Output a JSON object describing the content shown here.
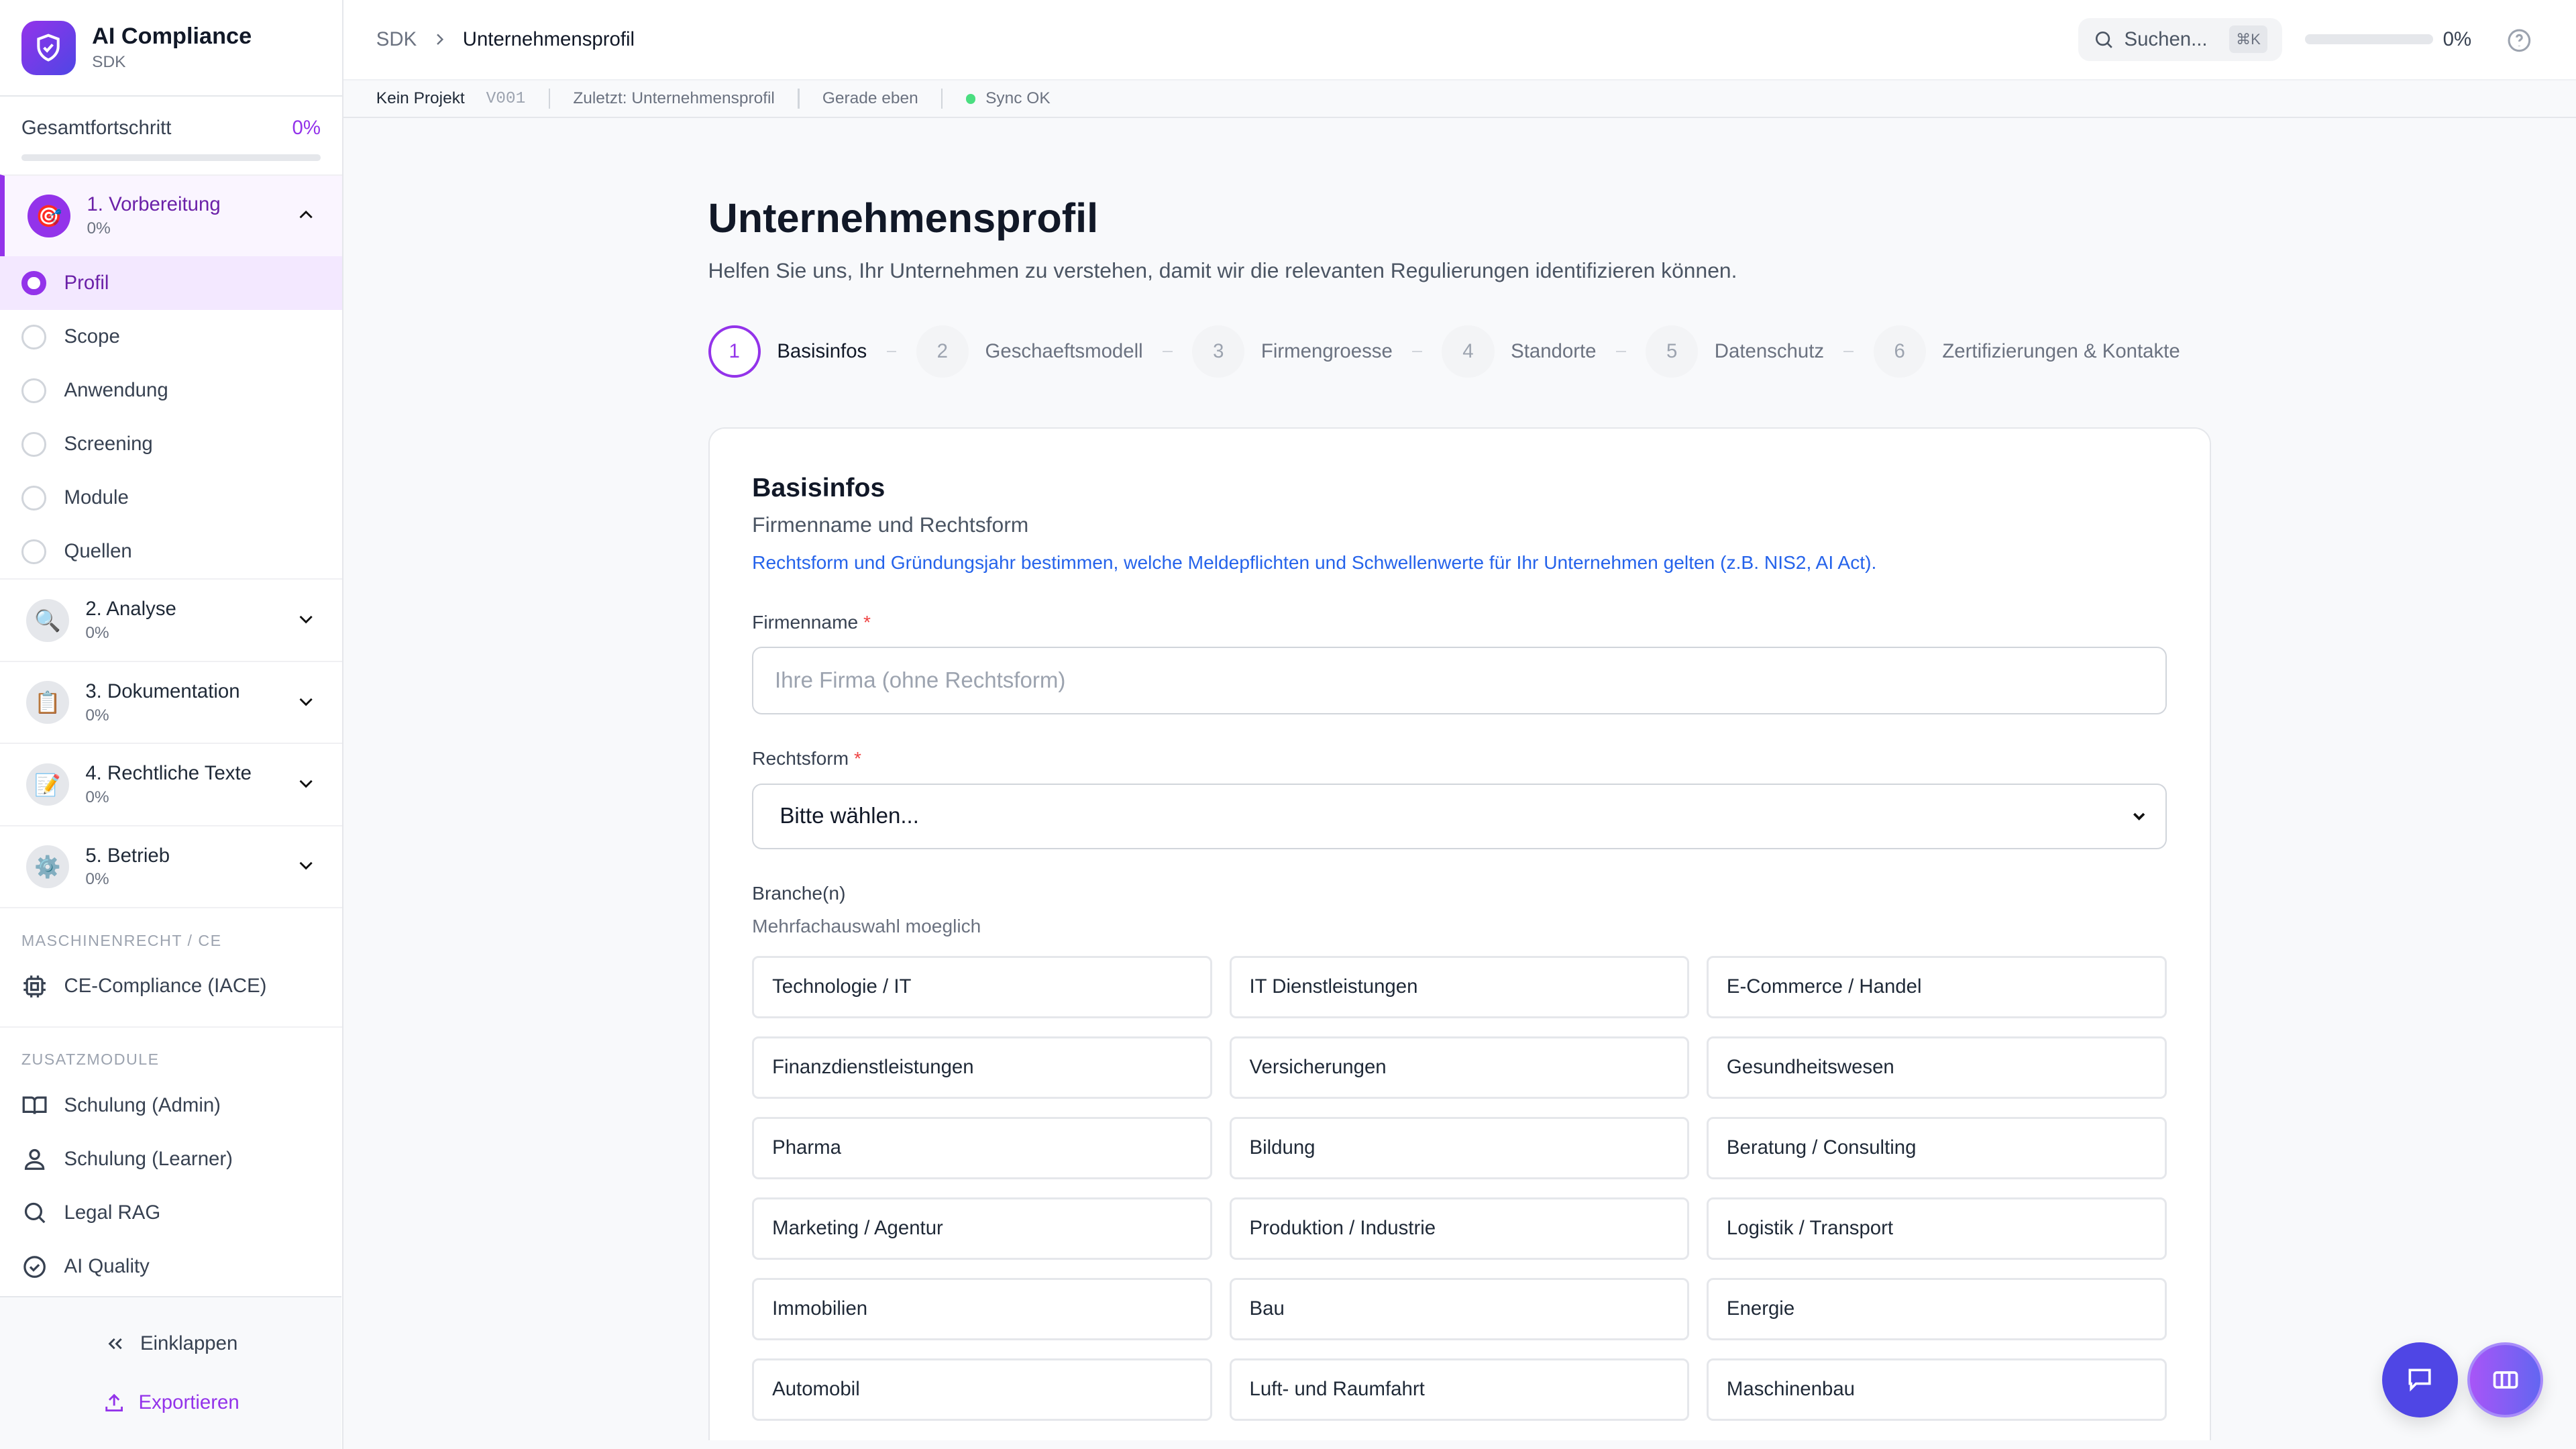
{
  "app": {
    "title": "AI Compliance",
    "subtitle": "SDK"
  },
  "overall": {
    "label": "Gesamtfortschritt",
    "value": "0%",
    "fraction": 0
  },
  "phases": [
    {
      "name": "1. Vorbereitung",
      "progress": "0%",
      "icon": "target-emoji",
      "expanded": true,
      "items": [
        {
          "label": "Profil",
          "active": true
        },
        {
          "label": "Scope"
        },
        {
          "label": "Anwendung"
        },
        {
          "label": "Screening"
        },
        {
          "label": "Module"
        },
        {
          "label": "Quellen"
        }
      ]
    },
    {
      "name": "2. Analyse",
      "progress": "0%",
      "icon": "magnifier-emoji"
    },
    {
      "name": "3. Dokumentation",
      "progress": "0%",
      "icon": "clipboard-emoji"
    },
    {
      "name": "4. Rechtliche Texte",
      "progress": "0%",
      "icon": "memo-emoji"
    },
    {
      "name": "5. Betrieb",
      "progress": "0%",
      "icon": "gear-emoji"
    }
  ],
  "sections": {
    "machine": "MASCHINENRECHT / CE",
    "extra": "ZUSATZMODULE"
  },
  "machine_items": [
    {
      "label": "CE-Compliance (IACE)",
      "icon": "cpu-icon"
    }
  ],
  "extra_items": [
    {
      "label": "Schulung (Admin)",
      "icon": "book-icon"
    },
    {
      "label": "Schulung (Learner)",
      "icon": "user-icon"
    },
    {
      "label": "Legal RAG",
      "icon": "search-icon"
    },
    {
      "label": "AI Quality",
      "icon": "check-circle-icon"
    }
  ],
  "footer": {
    "collapse": "Einklappen",
    "export": "Exportieren"
  },
  "header": {
    "crumb_root": "SDK",
    "crumb_current": "Unternehmensprofil",
    "search_placeholder": "Suchen...",
    "shortcut": "⌘K",
    "progress": "0%"
  },
  "statusbar": {
    "project": "Kein Projekt",
    "version": "V001",
    "last": "Zuletzt: Unternehmensprofil",
    "time": "Gerade eben",
    "sync": "Sync OK"
  },
  "page": {
    "title": "Unternehmensprofil",
    "lead": "Helfen Sie uns, Ihr Unternehmen zu verstehen, damit wir die relevanten Regulierungen identifizieren können."
  },
  "steps": [
    {
      "num": "1",
      "label": "Basisinfos"
    },
    {
      "num": "2",
      "label": "Geschaeftsmodell"
    },
    {
      "num": "3",
      "label": "Firmengroesse"
    },
    {
      "num": "4",
      "label": "Standorte"
    },
    {
      "num": "5",
      "label": "Datenschutz"
    },
    {
      "num": "6",
      "label": "Zertifizierungen & Kontakte"
    }
  ],
  "form": {
    "title": "Basisinfos",
    "subtitle": "Firmenname und Rechtsform",
    "info": "Rechtsform und Gründungsjahr bestimmen, welche Meldepflichten und Schwellenwerte für Ihr Unternehmen gelten (z.B. NIS2, AI Act).",
    "company_label": "Firmenname",
    "company_placeholder": "Ihre Firma (ohne Rechtsform)",
    "company_value": "",
    "legal_label": "Rechtsform",
    "legal_value": "Bitte wählen...",
    "industry_label": "Branche(n)",
    "industry_hint": "Mehrfachauswahl moeglich",
    "required_mark": "*",
    "industries": [
      "Technologie / IT",
      "IT Dienstleistungen",
      "E-Commerce / Handel",
      "Finanzdienstleistungen",
      "Versicherungen",
      "Gesundheitswesen",
      "Pharma",
      "Bildung",
      "Beratung / Consulting",
      "Marketing / Agentur",
      "Produktion / Industrie",
      "Logistik / Transport",
      "Immobilien",
      "Bau",
      "Energie",
      "Automobil",
      "Luft- und Raumfahrt",
      "Maschinenbau"
    ]
  },
  "colors": {
    "accent": "#9333ea",
    "link": "#2563eb",
    "chat": "#4f46e5",
    "sync": "#4ade80"
  }
}
